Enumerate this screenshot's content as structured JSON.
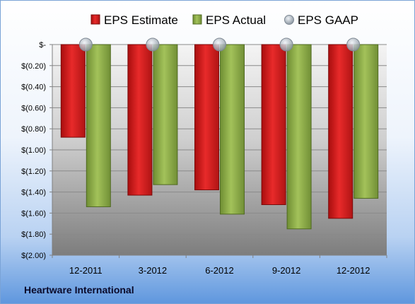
{
  "company_label": "Heartware International",
  "chart_data": {
    "type": "bar",
    "categories": [
      "12-2011",
      "3-2012",
      "6-2012",
      "9-2012",
      "12-2012"
    ],
    "series": [
      {
        "name": "EPS Estimate",
        "color": "#d42020",
        "values": [
          -0.88,
          -1.43,
          -1.38,
          -1.52,
          -1.65
        ]
      },
      {
        "name": "EPS Actual",
        "color": "#8fb04a",
        "values": [
          -1.54,
          -1.33,
          -1.61,
          -1.75,
          -1.46
        ]
      },
      {
        "name": "EPS GAAP",
        "color": "#b8c4d0",
        "values": [
          0,
          0,
          0,
          0,
          0
        ]
      }
    ],
    "ylim": [
      -2.0,
      0
    ],
    "yticks": [
      0,
      -0.2,
      -0.4,
      -0.6,
      -0.8,
      -1.0,
      -1.2,
      -1.4,
      -1.6,
      -1.8,
      -2.0
    ],
    "ytick_labels": [
      "$-",
      "$(0.20)",
      "$(0.40)",
      "$(0.60)",
      "$(0.80)",
      "$(1.00)",
      "$(1.20)",
      "$(1.40)",
      "$(1.60)",
      "$(1.80)",
      "$(2.00)"
    ],
    "grid": true,
    "legend_position": "top"
  }
}
